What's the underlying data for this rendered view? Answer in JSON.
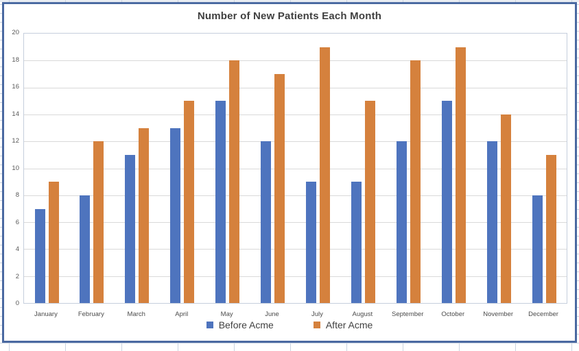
{
  "chart_data": {
    "type": "bar",
    "title": "Number of New Patients Each Month",
    "categories": [
      "January",
      "February",
      "March",
      "April",
      "May",
      "June",
      "July",
      "August",
      "September",
      "October",
      "November",
      "December"
    ],
    "series": [
      {
        "name": "Before Acme",
        "color": "#4E74BE",
        "values": [
          7,
          8,
          11,
          13,
          15,
          12,
          9,
          9,
          12,
          15,
          12,
          8
        ]
      },
      {
        "name": "After Acme",
        "color": "#D5813D",
        "values": [
          9,
          12,
          13,
          15,
          18,
          17,
          19,
          15,
          18,
          19,
          14,
          11
        ]
      }
    ],
    "xlabel": "",
    "ylabel": "",
    "ylim": [
      0,
      20
    ],
    "yticks": [
      0,
      2,
      4,
      6,
      8,
      10,
      12,
      14,
      16,
      18,
      20
    ],
    "grid": true,
    "legend_position": "bottom",
    "colors": {
      "grid_line": "#D9D9D9",
      "axis_line": "#C5CEDC",
      "title_text": "#404040",
      "axis_text": "#595959",
      "chart_border": "#4A69A1"
    }
  }
}
